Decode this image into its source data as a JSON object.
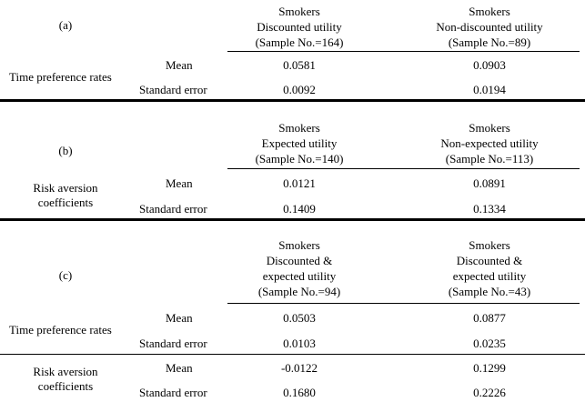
{
  "panels": [
    {
      "label": "(a)",
      "columns": [
        {
          "lines": [
            "Smokers",
            "Discounted utility",
            "(Sample No.=164)"
          ]
        },
        {
          "lines": [
            "Smokers",
            "Non-discounted utility",
            "(Sample No.=89)"
          ]
        }
      ],
      "groups": [
        {
          "label_lines": [
            "Time preference rates"
          ],
          "rows": [
            {
              "stat": "Mean",
              "values": [
                "0.0581",
                "0.0903"
              ]
            },
            {
              "stat": "Standard error",
              "values": [
                "0.0092",
                "0.0194"
              ]
            }
          ]
        }
      ]
    },
    {
      "label": "(b)",
      "columns": [
        {
          "lines": [
            "Smokers",
            "Expected utility",
            "(Sample No.=140)"
          ]
        },
        {
          "lines": [
            "Smokers",
            "Non-expected utility",
            "(Sample No.=113)"
          ]
        }
      ],
      "groups": [
        {
          "label_lines": [
            "Risk aversion",
            "coefficients"
          ],
          "rows": [
            {
              "stat": "Mean",
              "values": [
                "0.0121",
                "0.0891"
              ]
            },
            {
              "stat": "Standard error",
              "values": [
                "0.1409",
                "0.1334"
              ]
            }
          ]
        }
      ]
    },
    {
      "label": "(c)",
      "columns": [
        {
          "lines": [
            "Smokers",
            "Discounted &",
            "expected utility",
            "(Sample No.=94)"
          ]
        },
        {
          "lines": [
            "Smokers",
            "Discounted &",
            "expected utility",
            "(Sample No.=43)"
          ]
        }
      ],
      "groups": [
        {
          "label_lines": [
            "Time preference rates"
          ],
          "rows": [
            {
              "stat": "Mean",
              "values": [
                "0.0503",
                "0.0877"
              ]
            },
            {
              "stat": "Standard error",
              "values": [
                "0.0103",
                "0.0235"
              ]
            }
          ]
        },
        {
          "label_lines": [
            "Risk aversion",
            "coefficients"
          ],
          "rows": [
            {
              "stat": "Mean",
              "values": [
                "-0.0122",
                "0.1299"
              ]
            },
            {
              "stat": "Standard error",
              "values": [
                "0.1680",
                "0.2226"
              ]
            }
          ]
        }
      ]
    }
  ]
}
